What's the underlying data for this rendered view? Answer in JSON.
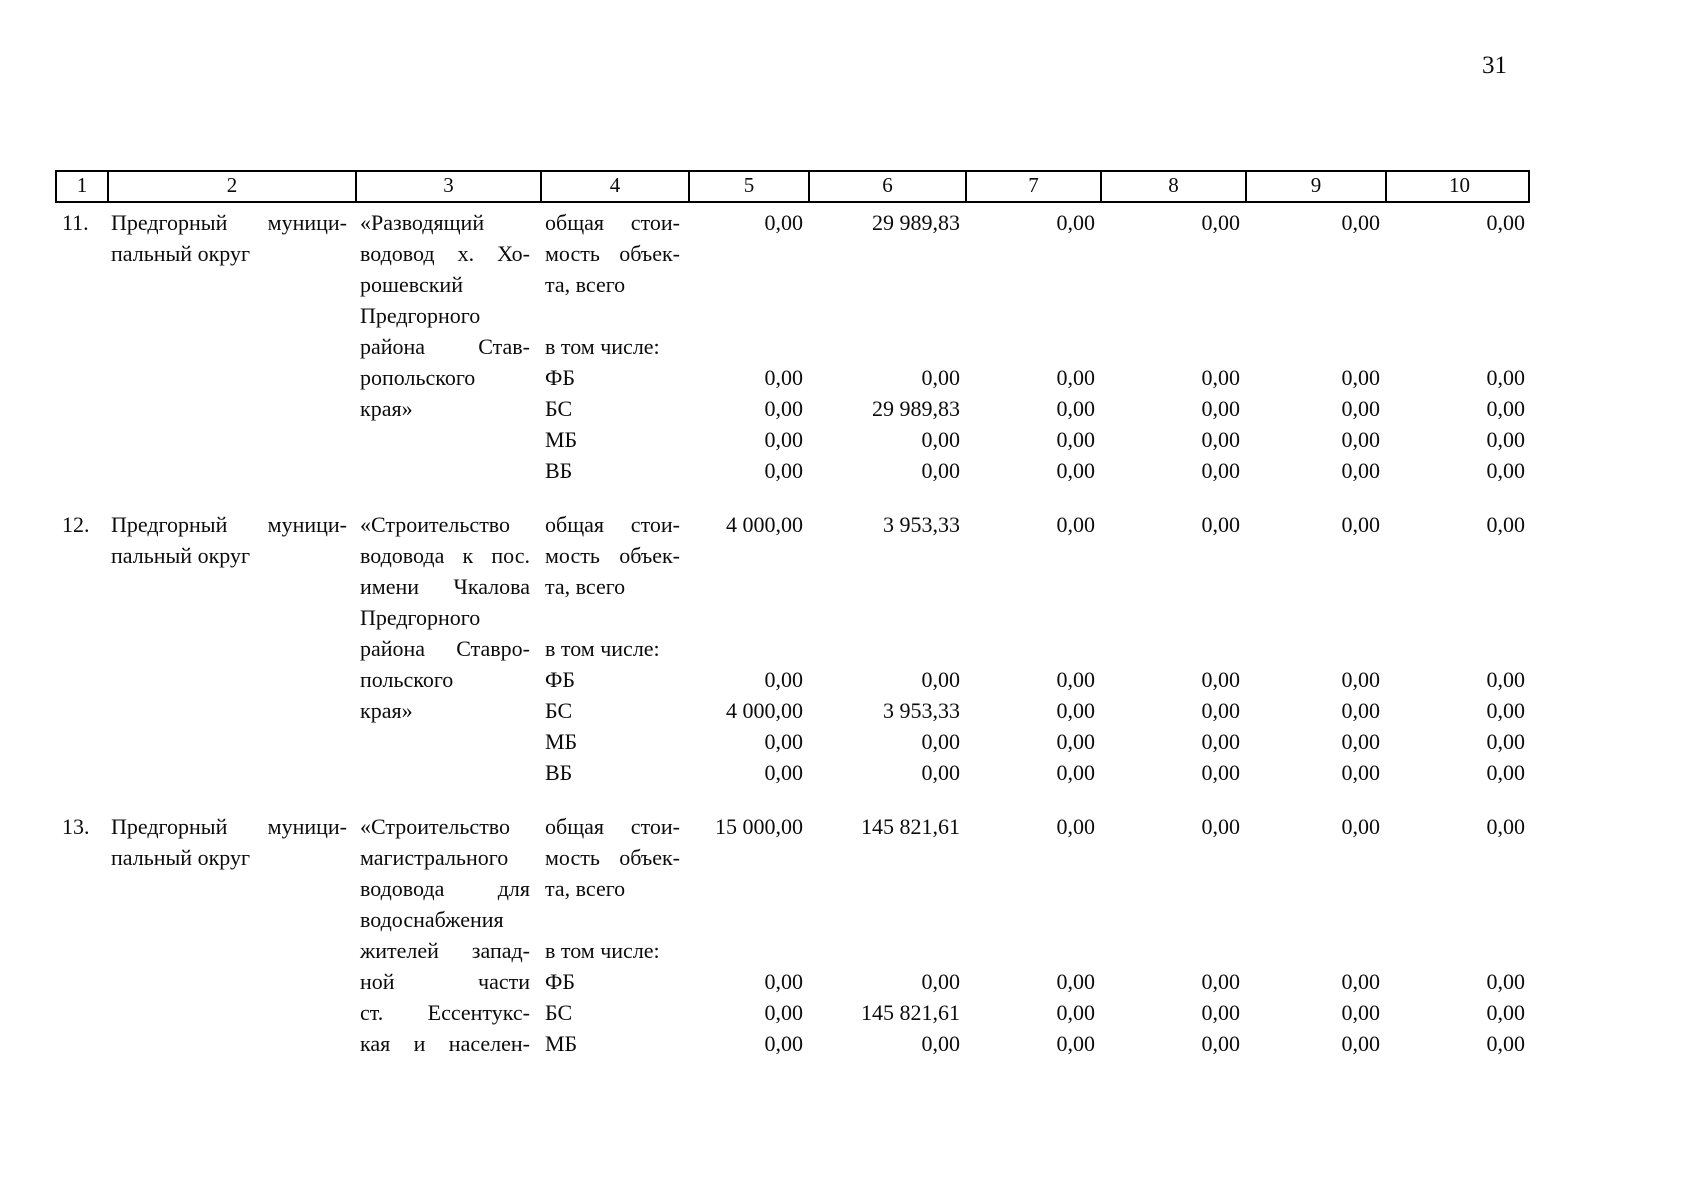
{
  "page": {
    "number": "31"
  },
  "table": {
    "header": [
      "1",
      "2",
      "3",
      "4",
      "5",
      "6",
      "7",
      "8",
      "9",
      "10"
    ],
    "entries": [
      {
        "num": "11.",
        "lines": [
          {
            "c2": "Предгорный муници-",
            "c2j": true,
            "c3": "«Разводящий",
            "c4": "общая стои-",
            "c4j": true,
            "v": [
              "0,00",
              "29 989,83",
              "0,00",
              "0,00",
              "0,00",
              "0,00"
            ]
          },
          {
            "c2": "пальный округ",
            "c3": "водовод х. Хо-",
            "c3j": true,
            "c4": "мость объек-",
            "c4j": true
          },
          {
            "c3": "рошевский",
            "c4": "та, всего"
          },
          {
            "c3": "Предгорного"
          },
          {
            "c3": "района Став-",
            "c3j": true,
            "c4": "в том числе:"
          },
          {
            "c3": "ропольского",
            "c4": "ФБ",
            "v": [
              "0,00",
              "0,00",
              "0,00",
              "0,00",
              "0,00",
              "0,00"
            ]
          },
          {
            "c3": "края»",
            "c4": "БС",
            "v": [
              "0,00",
              "29 989,83",
              "0,00",
              "0,00",
              "0,00",
              "0,00"
            ]
          },
          {
            "c4": "МБ",
            "v": [
              "0,00",
              "0,00",
              "0,00",
              "0,00",
              "0,00",
              "0,00"
            ]
          },
          {
            "c4": "ВБ",
            "v": [
              "0,00",
              "0,00",
              "0,00",
              "0,00",
              "0,00",
              "0,00"
            ]
          }
        ]
      },
      {
        "num": "12.",
        "lines": [
          {
            "c2": "Предгорный муници-",
            "c2j": true,
            "c3": "«Строительство",
            "c4": "общая стои-",
            "c4j": true,
            "v": [
              "4 000,00",
              "3 953,33",
              "0,00",
              "0,00",
              "0,00",
              "0,00"
            ]
          },
          {
            "c2": "пальный округ",
            "c3": "водовода к пос.",
            "c3j": true,
            "c4": "мость объек-",
            "c4j": true
          },
          {
            "c3": "имени Чкалова",
            "c3j": true,
            "c4": "та, всего"
          },
          {
            "c3": "Предгорного"
          },
          {
            "c3": "района Ставро-",
            "c3j": true,
            "c4": "в том числе:"
          },
          {
            "c3": "польского",
            "c4": "ФБ",
            "v": [
              "0,00",
              "0,00",
              "0,00",
              "0,00",
              "0,00",
              "0,00"
            ]
          },
          {
            "c3": "края»",
            "c4": "БС",
            "v": [
              "4 000,00",
              "3 953,33",
              "0,00",
              "0,00",
              "0,00",
              "0,00"
            ]
          },
          {
            "c4": "МБ",
            "v": [
              "0,00",
              "0,00",
              "0,00",
              "0,00",
              "0,00",
              "0,00"
            ]
          },
          {
            "c4": "ВБ",
            "v": [
              "0,00",
              "0,00",
              "0,00",
              "0,00",
              "0,00",
              "0,00"
            ]
          }
        ]
      },
      {
        "num": "13.",
        "lines": [
          {
            "c2": "Предгорный муници-",
            "c2j": true,
            "c3": "«Строительство",
            "c4": "общая стои-",
            "c4j": true,
            "v": [
              "15 000,00",
              "145 821,61",
              "0,00",
              "0,00",
              "0,00",
              "0,00"
            ]
          },
          {
            "c2": "пальный округ",
            "c3": "магистрального",
            "c4": "мость объек-",
            "c4j": true
          },
          {
            "c3": "водовода для",
            "c3j": true,
            "c4": "та, всего"
          },
          {
            "c3": "водоснабжения"
          },
          {
            "c3": "жителей запад-",
            "c3j": true,
            "c4": "в том числе:"
          },
          {
            "c3": "ной части",
            "c3j": true,
            "c4": "ФБ",
            "v": [
              "0,00",
              "0,00",
              "0,00",
              "0,00",
              "0,00",
              "0,00"
            ]
          },
          {
            "c3": "ст. Ессентукс-",
            "c3j": true,
            "c4": "БС",
            "v": [
              "0,00",
              "145 821,61",
              "0,00",
              "0,00",
              "0,00",
              "0,00"
            ]
          },
          {
            "c3": "кая и населен-",
            "c3j": true,
            "c4": "МБ",
            "v": [
              "0,00",
              "0,00",
              "0,00",
              "0,00",
              "0,00",
              "0,00"
            ]
          }
        ]
      }
    ]
  }
}
